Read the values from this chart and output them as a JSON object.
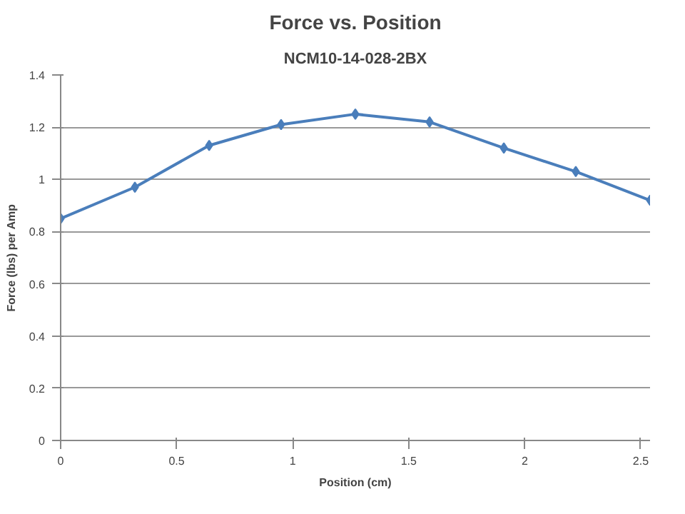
{
  "chart_data": {
    "type": "line",
    "title": "Force vs. Position",
    "subtitle": "NCM10-14-028-2BX",
    "xlabel": "Position (cm)",
    "ylabel": "Force (lbs) per Amp",
    "x": [
      0,
      0.32,
      0.64,
      0.95,
      1.27,
      1.59,
      1.91,
      2.22,
      2.54
    ],
    "series": [
      {
        "color": "#4a7ebb",
        "values": [
          0.85,
          0.97,
          1.13,
          1.21,
          1.25,
          1.22,
          1.12,
          1.03,
          0.92
        ]
      }
    ],
    "xlim": [
      0,
      2.54
    ],
    "xticks": [
      0,
      0.5,
      1,
      1.5,
      2,
      2.5
    ],
    "ylim": [
      0,
      1.4
    ],
    "yticks": [
      0,
      0.2,
      0.4,
      0.6,
      0.8,
      1,
      1.2,
      1.4
    ],
    "grid": "y",
    "marker": "diamond",
    "line_style": "solid"
  }
}
